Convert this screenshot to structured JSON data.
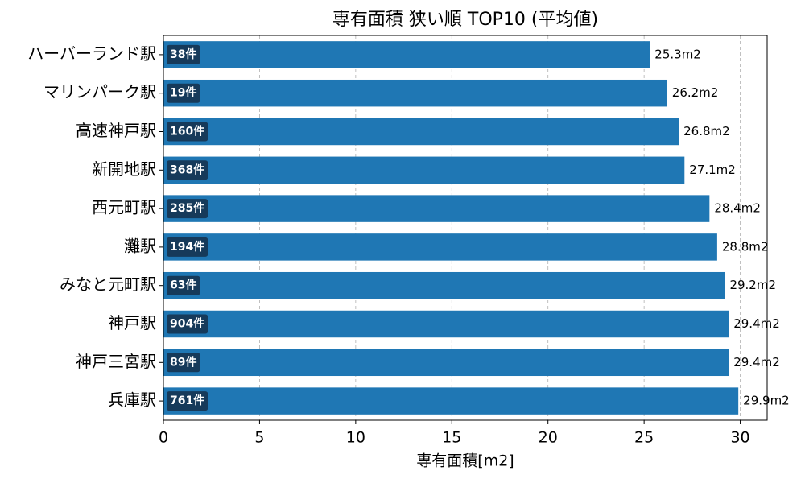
{
  "chart_data": {
    "type": "barh",
    "title": "専有面積 狭い順 TOP10 (平均値)",
    "x_label": "専有面積[m2]",
    "categories": [
      "ハーバーランド駅",
      "マリンパーク駅",
      "高速神戸駅",
      "新開地駅",
      "西元町駅",
      "灘駅",
      "みなと元町駅",
      "神戸駅",
      "神戸三宮駅",
      "兵庫駅"
    ],
    "values": [
      25.3,
      26.2,
      26.8,
      27.1,
      28.4,
      28.8,
      29.2,
      29.4,
      29.4,
      29.9
    ],
    "value_labels": [
      "25.3m2",
      "26.2m2",
      "26.8m2",
      "27.1m2",
      "28.4m2",
      "28.8m2",
      "29.2m2",
      "29.4m2",
      "29.4m2",
      "29.9m2"
    ],
    "count_labels": [
      "38件",
      "19件",
      "160件",
      "368件",
      "285件",
      "194件",
      "63件",
      "904件",
      "89件",
      "761件"
    ],
    "color": "#1f77b4",
    "xlim": [
      0,
      31.4
    ],
    "xticks": [
      0,
      5,
      10,
      15,
      20,
      25,
      30
    ],
    "grid": true
  }
}
